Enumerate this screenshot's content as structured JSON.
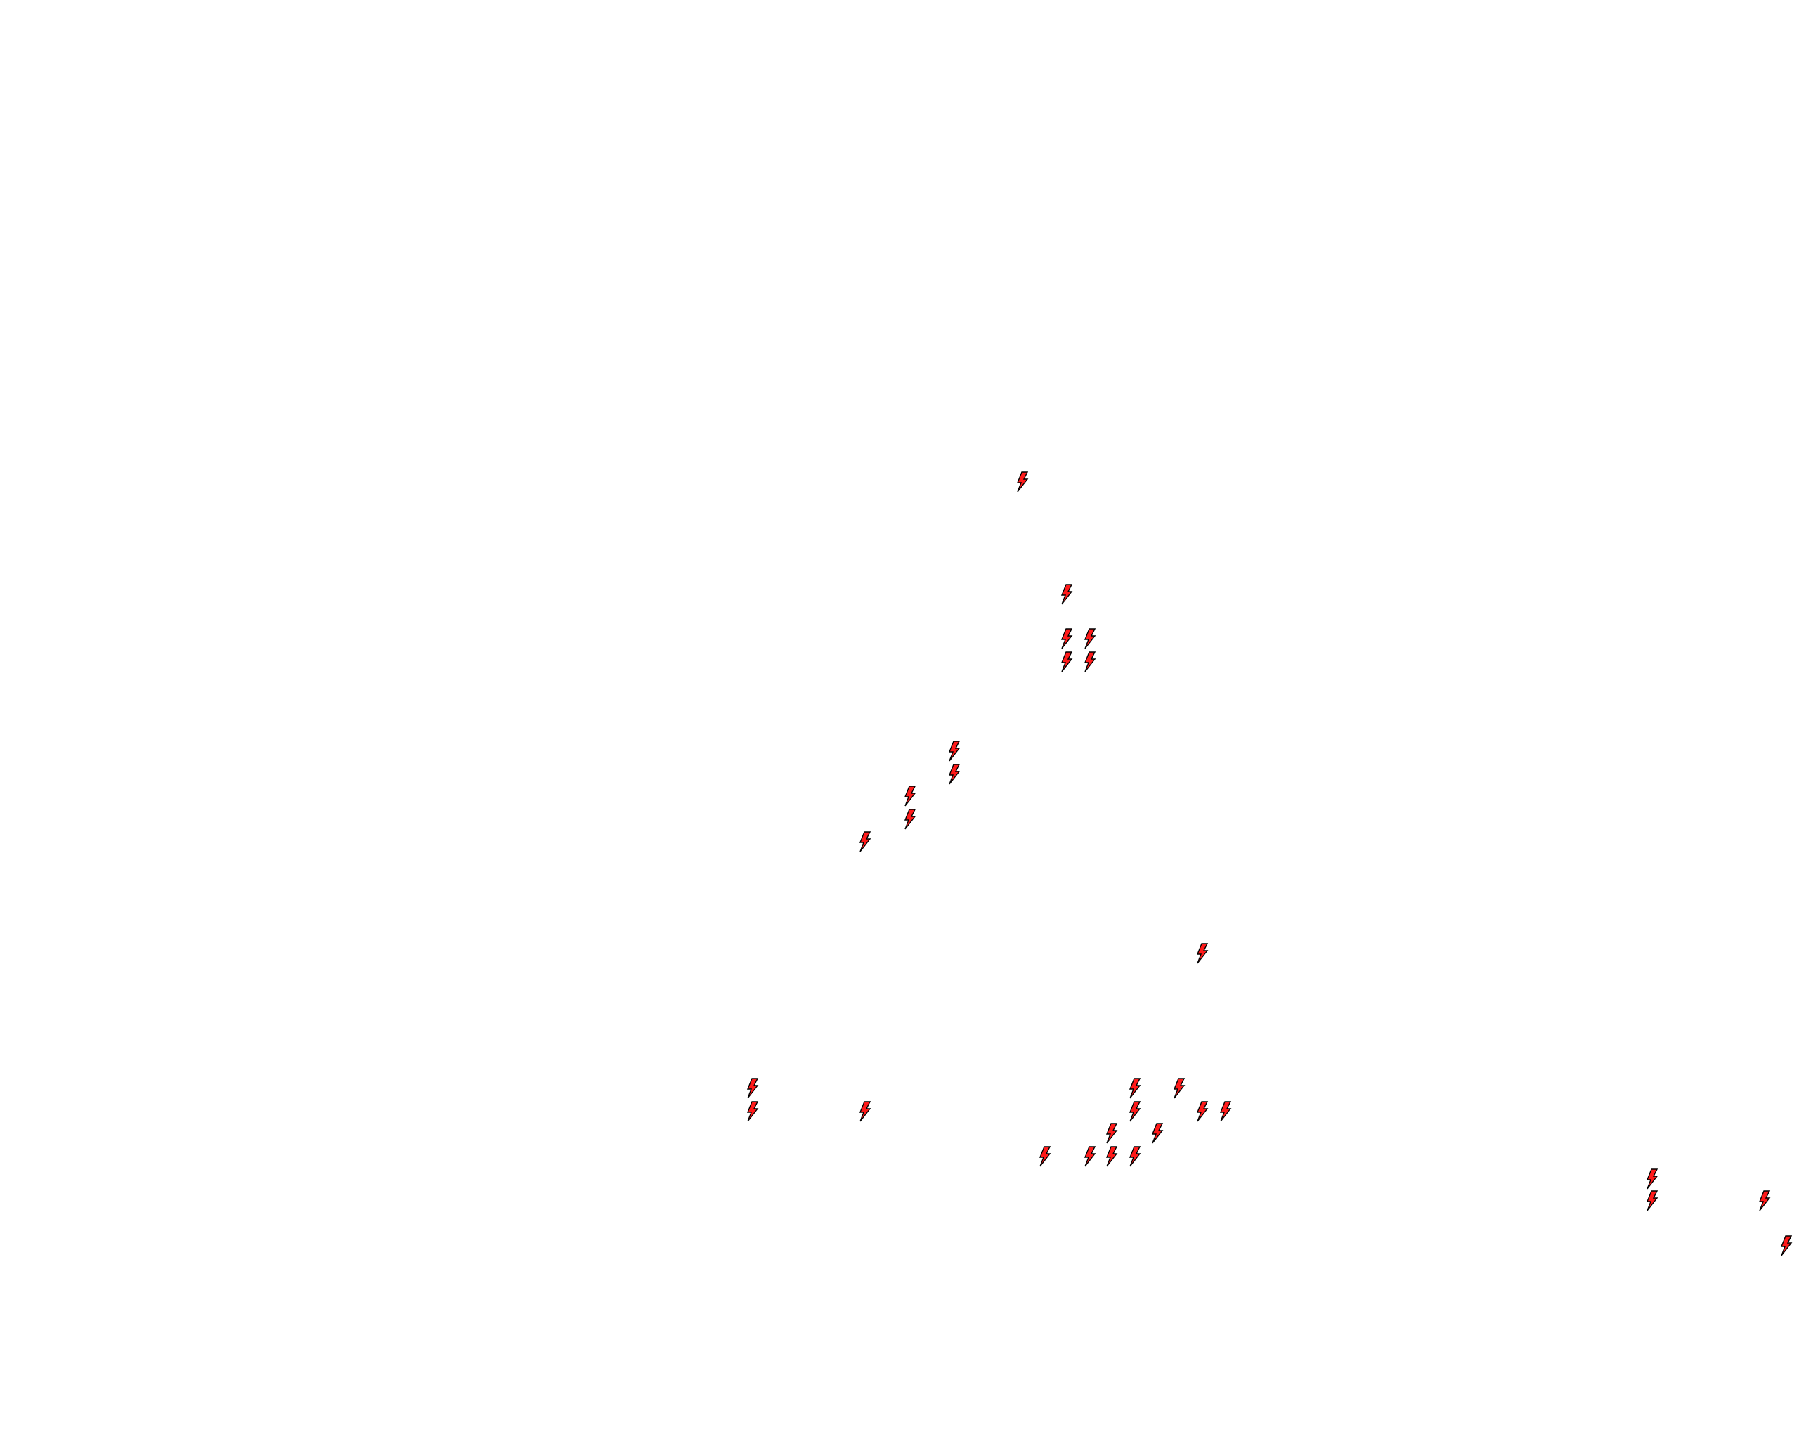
{
  "map": {
    "background_color": "#ffffff",
    "marker": {
      "icon": "lightning-bolt-icon",
      "fill_color": "#ff1a1a",
      "stroke_color": "#000000",
      "count": 30
    }
  }
}
